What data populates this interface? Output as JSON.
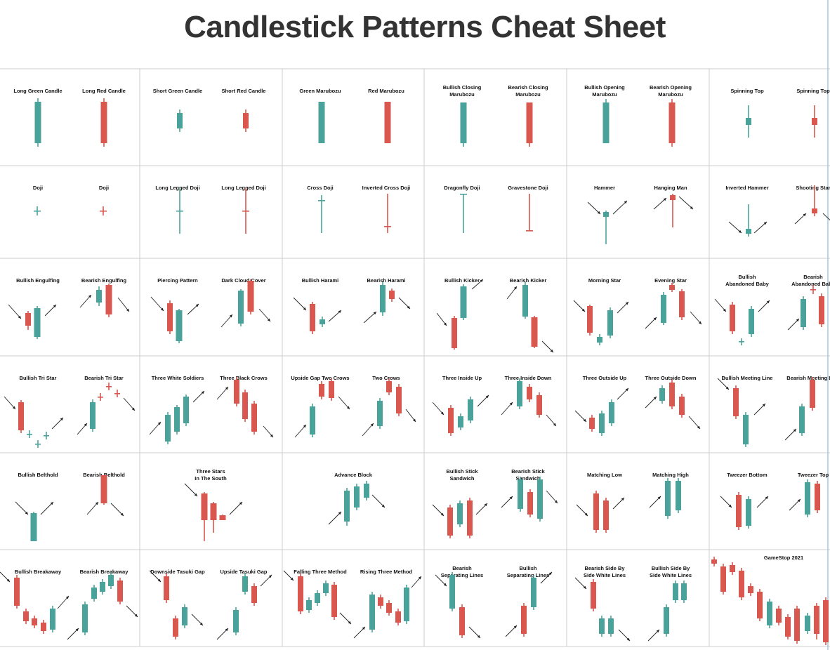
{
  "title": "Candlestick Patterns Cheat Sheet",
  "colors": {
    "bullish": "#4aa39a",
    "bearish": "#d9574f",
    "arrow": "#222222",
    "grid": "#cccccc",
    "title": "#333333"
  },
  "cells": [
    {
      "id": "r0c0",
      "labels": [
        "Long Green Candle",
        "Long Red Candle"
      ]
    },
    {
      "id": "r0c1",
      "labels": [
        "Short Green Candle",
        "Short Red Candle"
      ]
    },
    {
      "id": "r0c2",
      "labels": [
        "Green Marubozu",
        "Red Marubozu"
      ]
    },
    {
      "id": "r0c3",
      "labels": [
        "Bullish Closing Marubozu",
        "Bearish Closing Marubozu"
      ]
    },
    {
      "id": "r0c4",
      "labels": [
        "Bullish Opening Marubozu",
        "Bearish Opening Marubozu"
      ]
    },
    {
      "id": "r0c5",
      "labels": [
        "Spinning Top",
        "Spinning Top"
      ]
    },
    {
      "id": "r1c0",
      "labels": [
        "Doji",
        "Doji"
      ]
    },
    {
      "id": "r1c1",
      "labels": [
        "Long Legged Doji",
        "Long Legged Doji"
      ]
    },
    {
      "id": "r1c2",
      "labels": [
        "Cross Doji",
        "Inverted Cross Doji"
      ]
    },
    {
      "id": "r1c3",
      "labels": [
        "Dragonfly Doji",
        "Gravestone Doji"
      ]
    },
    {
      "id": "r1c4",
      "labels": [
        "Hammer",
        "Hanging Man"
      ]
    },
    {
      "id": "r1c5",
      "labels": [
        "Inverted Hammer",
        "Shooting Star"
      ]
    },
    {
      "id": "r2c0",
      "labels": [
        "Bullish Engulfing",
        "Bearish Engulfing"
      ]
    },
    {
      "id": "r2c1",
      "labels": [
        "Piercing Pattern",
        "Dark Cloud Cover"
      ]
    },
    {
      "id": "r2c2",
      "labels": [
        "Bullish Harami",
        "Bearish Harami"
      ]
    },
    {
      "id": "r2c3",
      "labels": [
        "Bullish Kicker",
        "Bearish Kicker"
      ]
    },
    {
      "id": "r2c4",
      "labels": [
        "Morning Star",
        "Evening Star"
      ]
    },
    {
      "id": "r2c5",
      "labels": [
        "Bullish Abandoned Baby",
        "Bearish Abandoned Baby"
      ]
    },
    {
      "id": "r3c0",
      "labels": [
        "Bullish Tri Star",
        "Bearish Tri Star"
      ]
    },
    {
      "id": "r3c1",
      "labels": [
        "Three White Soldiers",
        "Three Black Crows"
      ]
    },
    {
      "id": "r3c2",
      "labels": [
        "Upside Gap Two Crows",
        "Two Crows"
      ]
    },
    {
      "id": "r3c3",
      "labels": [
        "Three Inside Up",
        "Three Inside Down"
      ]
    },
    {
      "id": "r3c4",
      "labels": [
        "Three Outside Up",
        "Three Outside Down"
      ]
    },
    {
      "id": "r3c5",
      "labels": [
        "Bullish Meeting Line",
        "Bearish Meeting Line"
      ]
    },
    {
      "id": "r4c0",
      "labels": [
        "Bullish Belthold",
        "Bearish Belthold"
      ]
    },
    {
      "id": "r4c1",
      "labels": [
        "Three Stars In The South"
      ]
    },
    {
      "id": "r4c2",
      "labels": [
        "Advance Block"
      ]
    },
    {
      "id": "r4c3",
      "labels": [
        "Bullish Stick Sandwich",
        "Bearish Stick Sandwich"
      ]
    },
    {
      "id": "r4c4",
      "labels": [
        "Matching Low",
        "Matching High"
      ]
    },
    {
      "id": "r4c5",
      "labels": [
        "Tweezer Bottom",
        "Tweezer Top"
      ]
    },
    {
      "id": "r5c0",
      "labels": [
        "Bullish Breakaway",
        "Bearish Breakaway"
      ]
    },
    {
      "id": "r5c1",
      "labels": [
        "Downside Tasuki Gap",
        "Upside Tasuki Gap"
      ]
    },
    {
      "id": "r5c2",
      "labels": [
        "Falling Three Method",
        "Rising Three Method"
      ]
    },
    {
      "id": "r5c3",
      "labels": [
        "Bearish Separating Lines",
        "Bullish Separating Lines"
      ]
    },
    {
      "id": "r5c4",
      "labels": [
        "Bearish Side By Side White Lines",
        "Bullish Side By Side White Lines"
      ]
    },
    {
      "id": "r5c5",
      "labels": [
        "GameStop 2021"
      ]
    }
  ]
}
